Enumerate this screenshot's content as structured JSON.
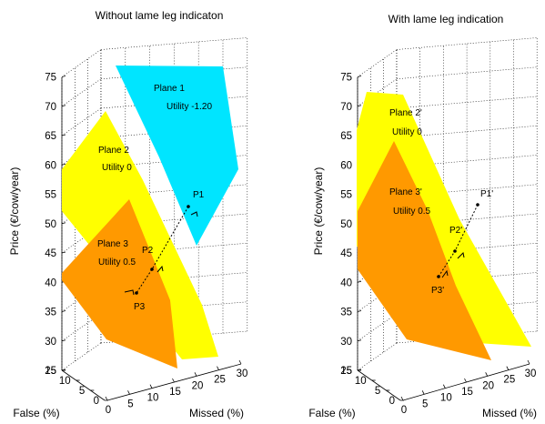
{
  "chart_data": [
    {
      "type": "scatter",
      "title": "Without lame leg indicaton",
      "xlabel": "Missed (%)",
      "ylabel": "False (%)",
      "zlabel": "Price (€/cow/year)",
      "x_ticks": [
        "0",
        "5",
        "10",
        "15",
        "20",
        "25",
        "30"
      ],
      "y_ticks": [
        "0",
        "5",
        "10",
        "15"
      ],
      "z_ticks": [
        "25",
        "30",
        "35",
        "40",
        "45",
        "50",
        "55",
        "60",
        "65",
        "70",
        "75"
      ],
      "planes": [
        {
          "name": "Plane 1",
          "utility": "Utility -1.20",
          "color": "#00e5ff"
        },
        {
          "name": "Plane 2",
          "utility": "Utility 0",
          "color": "#ffff00"
        },
        {
          "name": "Plane 3",
          "utility": "Utility 0.5",
          "color": "#ff9900"
        }
      ],
      "points": [
        {
          "name": "P1",
          "price": 47
        },
        {
          "name": "P2",
          "price": 34
        },
        {
          "name": "P3",
          "price": 29
        }
      ]
    },
    {
      "type": "scatter",
      "title": "With lame leg indication",
      "xlabel": "Missed (%)",
      "ylabel": "False (%)",
      "zlabel": "Price (€/cow/year)",
      "x_ticks": [
        "0",
        "5",
        "10",
        "15",
        "20",
        "25",
        "30"
      ],
      "y_ticks": [
        "0",
        "5",
        "10",
        "15"
      ],
      "z_ticks": [
        "25",
        "30",
        "35",
        "40",
        "45",
        "50",
        "55",
        "60",
        "65",
        "70",
        "75"
      ],
      "planes": [
        {
          "name": "Plane 2'",
          "utility": "Utility 0",
          "color": "#ffff00"
        },
        {
          "name": "Plane 3'",
          "utility": "Utility 0.5",
          "color": "#ff9900"
        }
      ],
      "points": [
        {
          "name": "P1'",
          "price": 47
        },
        {
          "name": "P2'",
          "price": 37
        },
        {
          "name": "P3'",
          "price": 32
        }
      ]
    }
  ]
}
